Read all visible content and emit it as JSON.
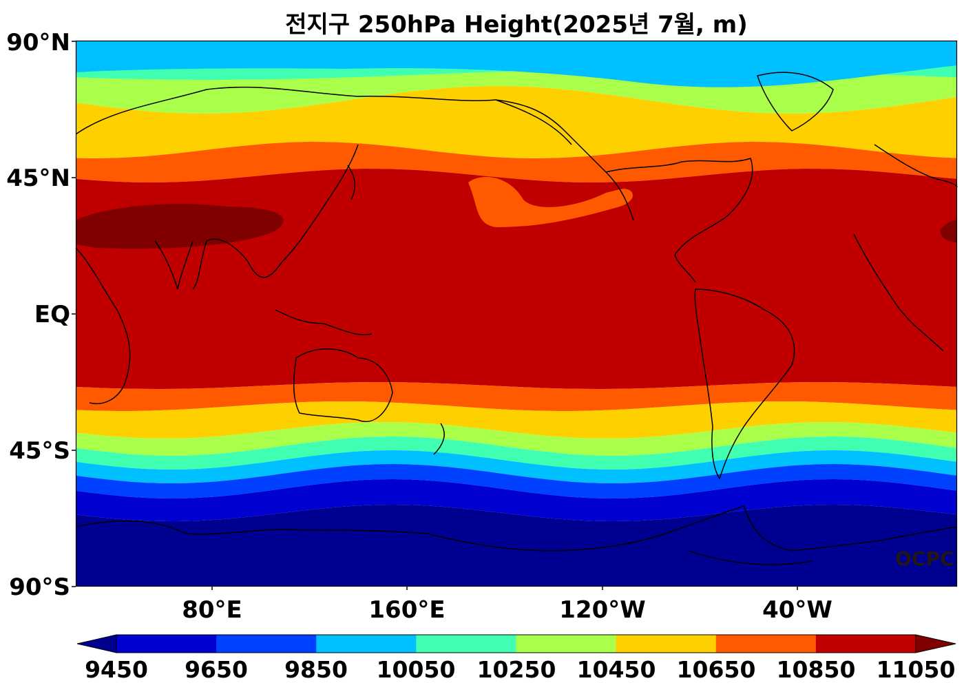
{
  "title": "전지구 250hPa Height(2025년 7월, m)",
  "lat_labels": [
    "90°N",
    "45°N",
    "EQ",
    "45°S",
    "90°S"
  ],
  "lon_labels": [
    "80°E",
    "160°E",
    "120°W",
    "40°W"
  ],
  "credit": "OCPC",
  "colorbar": {
    "levels": [
      9450,
      9650,
      9850,
      10050,
      10250,
      10450,
      10650,
      10850,
      11050
    ],
    "tick_labels": [
      "9450",
      "9650",
      "9850",
      "10050",
      "10250",
      "10450",
      "10650",
      "10850",
      "11050"
    ],
    "colors": [
      "#000090",
      "#0000d0",
      "#0040ff",
      "#00c0ff",
      "#40ffb0",
      "#aaff4a",
      "#ffd000",
      "#ff5a00",
      "#c00000",
      "#800000"
    ],
    "extend": "both"
  },
  "map": {
    "projection": "equirectangular, centered 180°",
    "lon_range": [
      "20°E",
      "20°E"
    ],
    "lat_range": [
      "90°S",
      "90°N"
    ],
    "field": "250hPa geopotential height",
    "units": "m",
    "coastlines_color": "#000000"
  }
}
